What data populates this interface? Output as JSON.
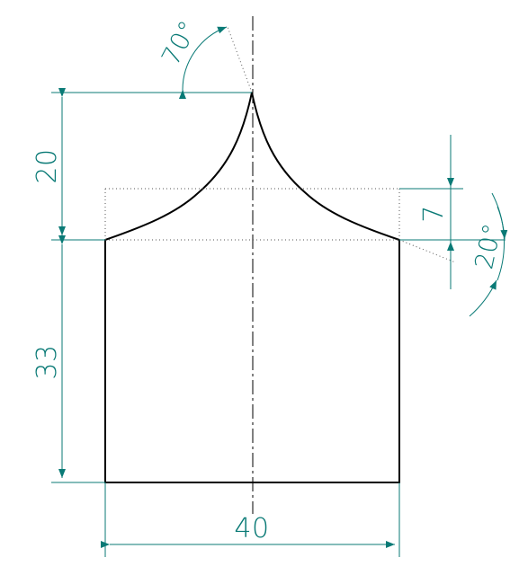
{
  "colors": {
    "geometry": "#000000",
    "dimension": "#0a7a76",
    "construction": "#555555",
    "background": "#ffffff"
  },
  "dimensions": {
    "height_top": "20",
    "height_bottom": "33",
    "width": "40",
    "step": "7",
    "angle_top": "70°",
    "angle_right": "20°"
  }
}
